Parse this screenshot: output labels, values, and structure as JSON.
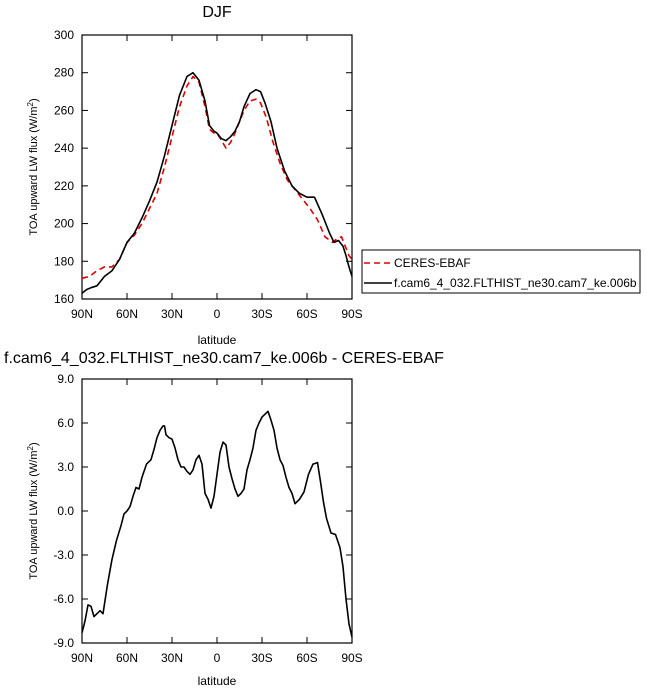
{
  "chart_data": [
    {
      "type": "line",
      "title": "DJF",
      "xlabel": "latitude",
      "ylabel": "TOA upward LW flux (W/m²)",
      "ylabel_base": "TOA upward LW flux (W/m",
      "ylabel_sup": "2",
      "ylabel_end": ")",
      "xlim": [
        90,
        -90
      ],
      "ylim": [
        160,
        300
      ],
      "xticks": [
        90,
        60,
        30,
        0,
        -30,
        -60,
        -90
      ],
      "xtick_labels": [
        "90N",
        "60N",
        "30N",
        "0",
        "30S",
        "60S",
        "90S"
      ],
      "yticks": [
        160,
        180,
        200,
        220,
        240,
        260,
        280,
        300
      ],
      "ytick_labels": [
        "160",
        "180",
        "200",
        "220",
        "240",
        "260",
        "280",
        "300"
      ],
      "legend_position": "outside-right",
      "series": [
        {
          "name": "CERES-EBAF",
          "color": "#dd0000",
          "dash": "dashed",
          "x": [
            90,
            85,
            80,
            75,
            70,
            65,
            60,
            55,
            50,
            45,
            40,
            35,
            30,
            25,
            20,
            16,
            12,
            8,
            5,
            2,
            0,
            -3,
            -6,
            -9,
            -12,
            -15,
            -18,
            -22,
            -26,
            -29,
            -33,
            -37,
            -42,
            -47,
            -52,
            -57,
            -62,
            -67,
            -72,
            -77,
            -80,
            -83,
            -86,
            -88,
            -90
          ],
          "y": [
            171,
            172,
            175,
            177,
            177,
            181,
            190,
            194,
            200,
            208,
            216,
            230,
            246,
            262,
            273,
            278,
            275,
            262,
            250,
            248,
            248,
            244,
            240,
            243,
            248,
            254,
            260,
            265,
            266,
            264,
            256,
            244,
            232,
            223,
            218,
            213,
            208,
            202,
            193,
            190,
            192,
            193,
            187,
            183,
            181
          ]
        },
        {
          "name": "f.cam6_4_032.FLTHIST_ne30.cam7_ke.006b",
          "color": "#000000",
          "dash": "solid",
          "x": [
            90,
            87,
            84,
            80,
            75,
            70,
            65,
            60,
            55,
            50,
            45,
            40,
            35,
            30,
            25,
            20,
            16,
            12,
            8,
            5,
            2,
            0,
            -3,
            -6,
            -9,
            -12,
            -15,
            -18,
            -22,
            -26,
            -29,
            -32,
            -36,
            -40,
            -45,
            -50,
            -55,
            -60,
            -65,
            -70,
            -75,
            -78,
            -81,
            -84,
            -86,
            -88,
            -90
          ],
          "y": [
            163,
            165,
            166,
            167,
            172,
            175,
            181,
            190,
            195,
            203,
            212,
            222,
            236,
            252,
            268,
            278,
            280,
            276,
            265,
            252,
            249,
            248,
            245,
            244,
            246,
            249,
            254,
            262,
            269,
            271,
            270,
            264,
            254,
            240,
            228,
            220,
            216,
            214,
            214,
            205,
            195,
            190,
            191,
            188,
            183,
            177,
            172
          ]
        }
      ]
    },
    {
      "type": "line",
      "title": "f.cam6_4_032.FLTHIST_ne30.cam7_ke.006b - CERES-EBAF",
      "xlabel": "latitude",
      "ylabel": "TOA upward LW flux (W/m²)",
      "ylabel_base": "TOA upward LW flux (W/m",
      "ylabel_sup": "2",
      "ylabel_end": ")",
      "xlim": [
        90,
        -90
      ],
      "ylim": [
        -9,
        9
      ],
      "xticks": [
        90,
        60,
        30,
        0,
        -30,
        -60,
        -90
      ],
      "xtick_labels": [
        "90N",
        "60N",
        "30N",
        "0",
        "30S",
        "60S",
        "90S"
      ],
      "yticks": [
        -9,
        -6,
        -3,
        0,
        3,
        6,
        9
      ],
      "ytick_labels": [
        "-9.0",
        "-6.0",
        "-3.0",
        "0.0",
        "3.0",
        "6.0",
        "9.0"
      ],
      "series": [
        {
          "color": "#000000",
          "dash": "solid",
          "x": [
            90,
            88,
            86,
            84,
            82,
            80,
            78,
            76,
            73,
            70,
            67,
            64,
            62,
            60,
            58,
            56,
            54,
            52,
            50,
            47,
            44,
            42,
            40,
            38,
            36,
            35,
            34,
            32,
            30,
            28,
            26,
            24,
            22,
            20,
            18,
            16,
            14,
            12,
            10,
            8,
            6,
            4,
            2,
            0,
            -2,
            -4,
            -6,
            -8,
            -10,
            -12,
            -14,
            -16,
            -18,
            -20,
            -22,
            -24,
            -26,
            -28,
            -30,
            -32,
            -34,
            -36,
            -38,
            -40,
            -42,
            -44,
            -46,
            -48,
            -50,
            -52,
            -55,
            -58,
            -61,
            -64,
            -67,
            -69,
            -71,
            -73,
            -76,
            -79,
            -82,
            -84,
            -86,
            -88,
            -90
          ],
          "y": [
            -8.3,
            -7.5,
            -6.4,
            -6.5,
            -7.2,
            -7.0,
            -6.8,
            -7.0,
            -5.0,
            -3.3,
            -2.0,
            -1.0,
            -0.2,
            0.0,
            0.3,
            1.0,
            1.6,
            1.5,
            2.3,
            3.2,
            3.5,
            4.2,
            5.0,
            5.5,
            5.8,
            5.8,
            5.2,
            5.0,
            4.9,
            4.3,
            3.5,
            3.0,
            3.0,
            2.7,
            2.5,
            2.8,
            3.5,
            3.8,
            3.2,
            1.2,
            0.8,
            0.2,
            1.0,
            2.5,
            4.0,
            4.7,
            4.5,
            3.0,
            2.2,
            1.5,
            1.0,
            1.2,
            1.5,
            2.8,
            3.5,
            4.3,
            5.5,
            6.0,
            6.4,
            6.6,
            6.8,
            6.2,
            5.5,
            4.3,
            3.5,
            3.1,
            2.3,
            1.6,
            1.2,
            0.5,
            0.8,
            1.3,
            2.5,
            3.2,
            3.3,
            2.0,
            0.6,
            -0.5,
            -1.5,
            -1.6,
            -2.5,
            -3.8,
            -6.0,
            -7.7,
            -8.6
          ]
        }
      ]
    }
  ]
}
